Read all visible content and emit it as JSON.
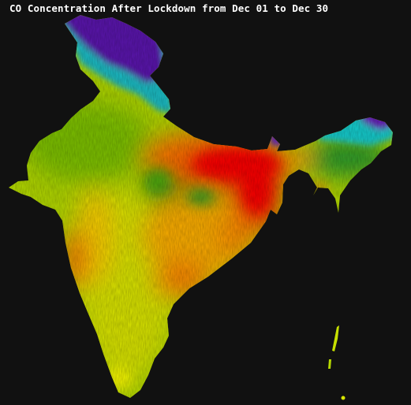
{
  "map": {
    "title": "CO Concentration After Lockdown from Dec 01 to Dec 30",
    "background": "#111111",
    "colormap": {
      "very_low": "#5a12b0",
      "low": "#19d6d9",
      "low_mid": "#2e8f18",
      "mid": "#a8d800",
      "mid_high": "#ffff00",
      "high": "#ff9800",
      "very_high": "#ff0000"
    }
  }
}
